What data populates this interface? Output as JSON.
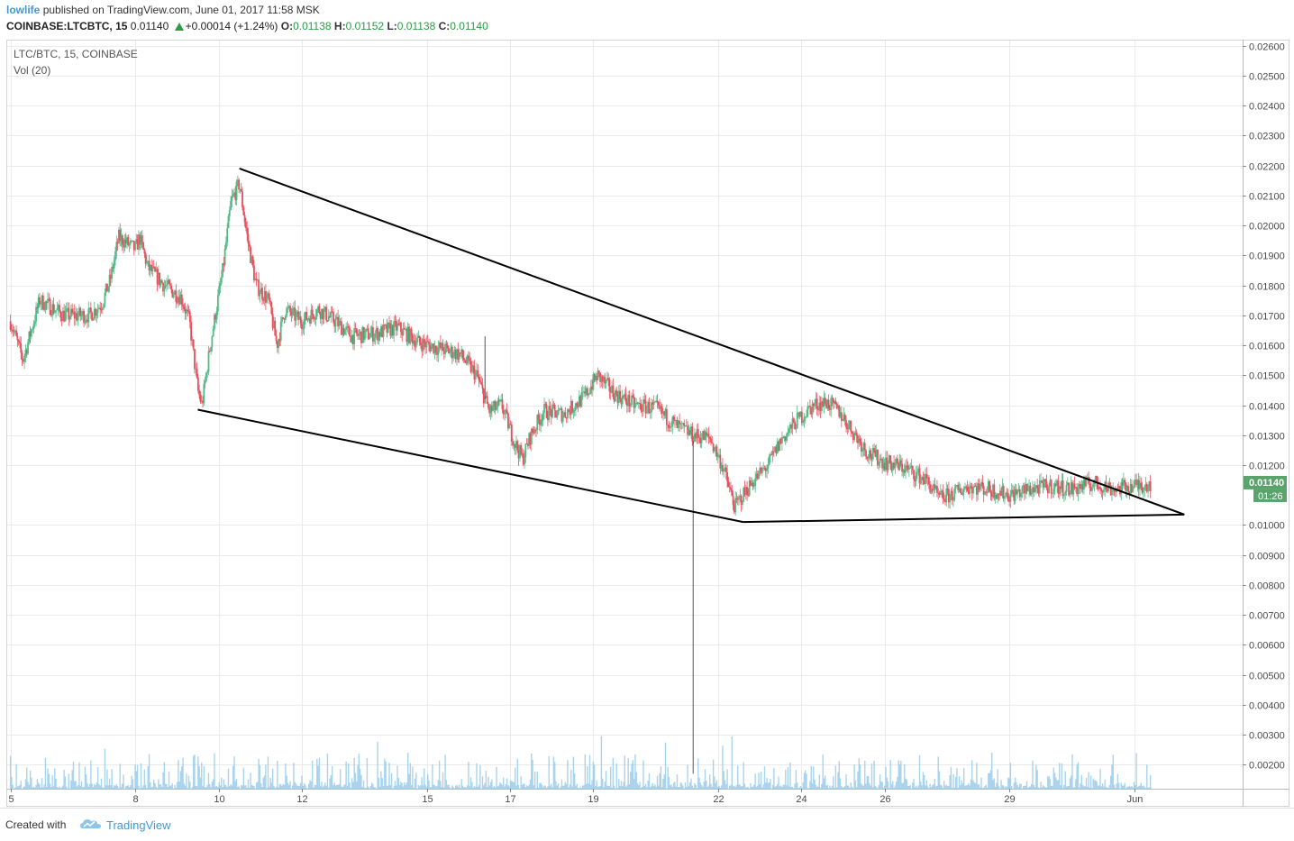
{
  "header": {
    "author": "lowlife",
    "published": "published on TradingView.com, June 01, 2017 11:58 MSK",
    "symbol": "COINBASE:LTCBTC, 15",
    "last": "0.01140",
    "change": "+0.00014 (+1.24%)",
    "o_label": "O:",
    "o_value": "0.01138",
    "h_label": "H:",
    "h_value": "0.01152",
    "l_label": "L:",
    "l_value": "0.01138",
    "c_label": "C:",
    "c_value": "0.01140"
  },
  "pane": {
    "title": "LTC/BTC, 15, COINBASE",
    "volume_label": "Vol (20)"
  },
  "footer": {
    "created_with": "Created with",
    "brand": "TradingView"
  },
  "colors": {
    "up": "#53b987",
    "down": "#eb4d5c",
    "volume": "#8cc5e8",
    "grid": "#e8eaed",
    "trendline": "#000000",
    "price_badge": "#5aa46b",
    "accent": "#3d9ad6"
  },
  "chart_data": {
    "type": "candlestick",
    "symbol": "LTC/BTC",
    "interval": "15",
    "exchange": "COINBASE",
    "y_axis": {
      "min": 0.0012,
      "max": 0.0262,
      "ticks": [
        "0.02600",
        "0.02500",
        "0.02400",
        "0.02300",
        "0.02200",
        "0.02100",
        "0.02000",
        "0.01900",
        "0.01800",
        "0.01700",
        "0.01600",
        "0.01500",
        "0.01400",
        "0.01300",
        "0.01200",
        "0.01000",
        "0.00900",
        "0.00800",
        "0.00700",
        "0.00600",
        "0.00500",
        "0.00400",
        "0.00300",
        "0.00200"
      ],
      "last_price_label": "0.01140",
      "countdown_label": "01:26"
    },
    "x_axis": {
      "min_day": 4.9,
      "max_day": 34.6,
      "ticks": [
        {
          "label": "5",
          "day": 5
        },
        {
          "label": "8",
          "day": 8
        },
        {
          "label": "10",
          "day": 10
        },
        {
          "label": "12",
          "day": 12
        },
        {
          "label": "15",
          "day": 15
        },
        {
          "label": "17",
          "day": 17
        },
        {
          "label": "19",
          "day": 19
        },
        {
          "label": "22",
          "day": 22
        },
        {
          "label": "24",
          "day": 24
        },
        {
          "label": "26",
          "day": 26
        },
        {
          "label": "29",
          "day": 29
        },
        {
          "label": "Jun",
          "day": 32
        }
      ]
    },
    "price_path": [
      [
        5.0,
        0.0168
      ],
      [
        5.3,
        0.0155
      ],
      [
        5.7,
        0.0175
      ],
      [
        6.3,
        0.017
      ],
      [
        6.9,
        0.017
      ],
      [
        7.2,
        0.0174
      ],
      [
        7.4,
        0.0182
      ],
      [
        7.6,
        0.0196
      ],
      [
        8.0,
        0.0192
      ],
      [
        8.1,
        0.0196
      ],
      [
        8.3,
        0.0186
      ],
      [
        8.7,
        0.018
      ],
      [
        9.1,
        0.0176
      ],
      [
        9.3,
        0.0168
      ],
      [
        9.5,
        0.0145
      ],
      [
        9.6,
        0.014
      ],
      [
        9.8,
        0.016
      ],
      [
        10.1,
        0.0185
      ],
      [
        10.3,
        0.0208
      ],
      [
        10.5,
        0.0214
      ],
      [
        10.7,
        0.0195
      ],
      [
        10.9,
        0.018
      ],
      [
        11.2,
        0.0175
      ],
      [
        11.4,
        0.016
      ],
      [
        11.6,
        0.0172
      ],
      [
        12.0,
        0.0168
      ],
      [
        12.4,
        0.0172
      ],
      [
        12.8,
        0.0168
      ],
      [
        13.2,
        0.0163
      ],
      [
        13.8,
        0.0164
      ],
      [
        14.3,
        0.0166
      ],
      [
        14.8,
        0.0161
      ],
      [
        15.3,
        0.0159
      ],
      [
        15.8,
        0.0157
      ],
      [
        16.2,
        0.015
      ],
      [
        16.5,
        0.0138
      ],
      [
        16.8,
        0.014
      ],
      [
        17.1,
        0.0128
      ],
      [
        17.3,
        0.0122
      ],
      [
        17.5,
        0.013
      ],
      [
        17.8,
        0.0138
      ],
      [
        18.3,
        0.0137
      ],
      [
        18.8,
        0.0143
      ],
      [
        19.1,
        0.015
      ],
      [
        19.5,
        0.0144
      ],
      [
        20.0,
        0.014
      ],
      [
        20.5,
        0.0139
      ],
      [
        21.0,
        0.0133
      ],
      [
        21.4,
        0.013
      ],
      [
        21.8,
        0.0129
      ],
      [
        22.1,
        0.012
      ],
      [
        22.4,
        0.0106
      ],
      [
        22.8,
        0.0114
      ],
      [
        23.2,
        0.012
      ],
      [
        23.5,
        0.0128
      ],
      [
        23.9,
        0.0135
      ],
      [
        24.3,
        0.014
      ],
      [
        24.6,
        0.0141
      ],
      [
        24.9,
        0.0138
      ],
      [
        25.3,
        0.013
      ],
      [
        25.6,
        0.0124
      ],
      [
        26.0,
        0.0121
      ],
      [
        26.5,
        0.0119
      ],
      [
        27.0,
        0.0115
      ],
      [
        27.3,
        0.0109
      ],
      [
        27.6,
        0.011
      ],
      [
        28.0,
        0.0113
      ],
      [
        28.5,
        0.0112
      ],
      [
        29.0,
        0.011
      ],
      [
        29.5,
        0.0112
      ],
      [
        30.0,
        0.0113
      ],
      [
        30.5,
        0.0112
      ],
      [
        31.0,
        0.0114
      ],
      [
        31.5,
        0.0112
      ],
      [
        32.0,
        0.0113
      ],
      [
        32.4,
        0.0114
      ]
    ],
    "price_spike": {
      "day": 21.4,
      "low": 0.0017,
      "high": 0.0128
    },
    "price_wick": {
      "day": 16.4,
      "high": 0.0163
    },
    "trendlines": [
      {
        "from": [
          10.5,
          0.0219
        ],
        "to": [
          33.2,
          0.01035
        ]
      },
      {
        "from": [
          9.5,
          0.01385
        ],
        "to": [
          22.6,
          0.0101
        ]
      },
      {
        "from": [
          22.6,
          0.0101
        ],
        "to": [
          33.2,
          0.01035
        ]
      }
    ],
    "volume": {
      "pane_top_price": 0.0032,
      "base_price": 0.0012
    }
  }
}
